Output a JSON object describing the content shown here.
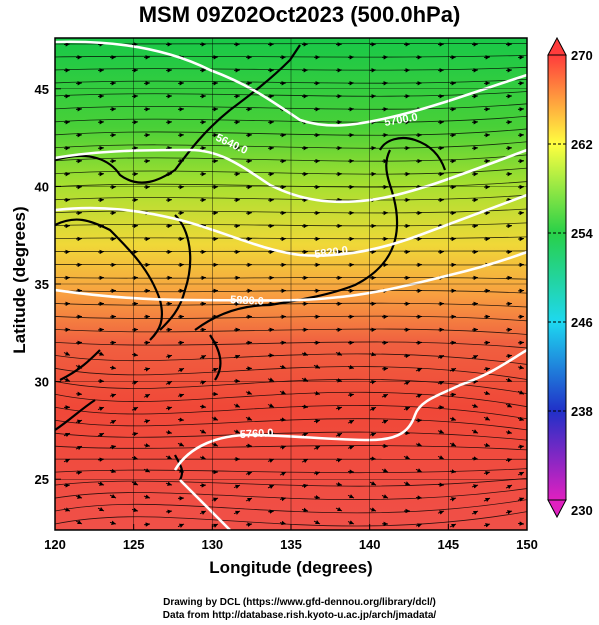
{
  "title": "MSM 09Z02Oct2023 (500.0hPa)",
  "xlabel": "Longitude (degrees)",
  "ylabel": "Latitude  (degrees)",
  "credits": [
    "Drawing by DCL (https://www.gfd-dennou.org/library/dcl/)",
    "Data from http://database.rish.kyoto-u.ac.jp/arch/jmadata/"
  ],
  "chart_data": {
    "type": "heatmap",
    "xlim": [
      120,
      150
    ],
    "ylim": [
      22.4,
      47.6
    ],
    "xticks": [
      120,
      125,
      130,
      135,
      140,
      145,
      150
    ],
    "yticks": [
      25,
      30,
      35,
      40,
      45
    ],
    "grid": true,
    "colorbar": {
      "min": 230,
      "max": 270,
      "ticks": [
        230,
        238,
        246,
        254,
        262,
        270
      ],
      "colors": [
        "#e020c0",
        "#2030c8",
        "#1ed8f0",
        "#28d048",
        "#ffff40",
        "#ff3c3c"
      ]
    },
    "contour_labels": [
      "5700.0",
      "5640.0",
      "5820.0",
      "5880.0",
      "5760.0",
      "5880.0"
    ],
    "field_description_colors": {
      "north": "#28c840",
      "middle": "#f0e040",
      "south": "#f05040"
    }
  }
}
